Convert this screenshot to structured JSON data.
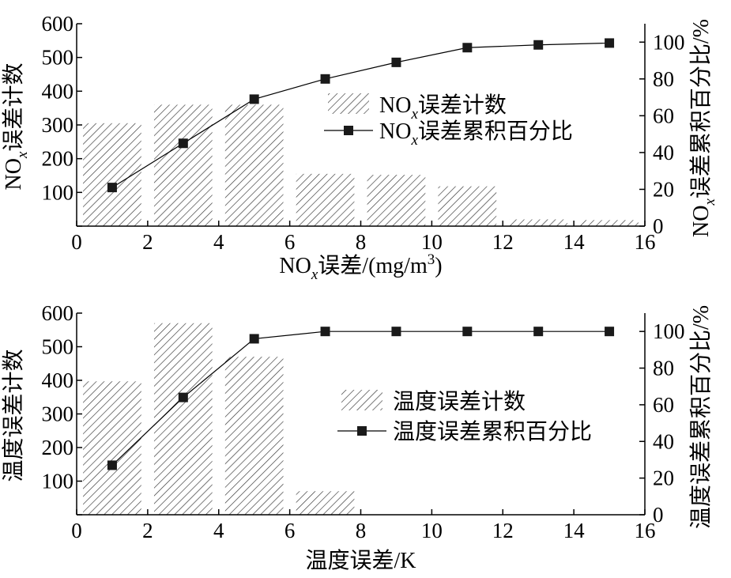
{
  "chart_data": [
    {
      "type": "bar",
      "xlabel_parts": [
        "NO",
        "x",
        "误差/(mg/m",
        "3",
        ")"
      ],
      "ylabel_left_parts": [
        "NO",
        "x",
        "误差计数"
      ],
      "ylabel_right_parts": [
        "NO",
        "x",
        "误差累积百分比/%"
      ],
      "x": [
        1,
        3,
        5,
        7,
        9,
        11,
        13,
        15
      ],
      "xlim": [
        0,
        16
      ],
      "xticks": [
        "0",
        "2",
        "4",
        "6",
        "8",
        "10",
        "12",
        "14",
        "16"
      ],
      "ylim_left": [
        0,
        600
      ],
      "yticks_left": [
        "0",
        "100",
        "200",
        "300",
        "400",
        "500",
        "600"
      ],
      "ylim_right": [
        0,
        110
      ],
      "yticks_right": [
        "0",
        "20",
        "40",
        "60",
        "80",
        "100"
      ],
      "series": [
        {
          "name_parts": [
            "NO",
            "x",
            "误差计数"
          ],
          "kind": "bar",
          "values": [
            305,
            360,
            360,
            155,
            152,
            118,
            20,
            18
          ]
        },
        {
          "name_parts": [
            "NO",
            "x",
            "误差累积百分比"
          ],
          "kind": "line",
          "axis": "right",
          "values": [
            21,
            45,
            69,
            80,
            89,
            97,
            98.5,
            99.5
          ]
        }
      ],
      "legend_position": "center-right"
    },
    {
      "type": "bar",
      "xlabel_parts": [
        "温度误差/K"
      ],
      "ylabel_left_parts": [
        "温度误差计数"
      ],
      "ylabel_right_parts": [
        "温度误差累积百分比/%"
      ],
      "x": [
        1,
        3,
        5,
        7,
        9,
        11,
        13,
        15
      ],
      "xlim": [
        0,
        16
      ],
      "xticks": [
        "0",
        "2",
        "4",
        "6",
        "8",
        "10",
        "12",
        "14",
        "16"
      ],
      "ylim_left": [
        0,
        600
      ],
      "yticks_left": [
        "0",
        "100",
        "200",
        "300",
        "400",
        "500",
        "600"
      ],
      "ylim_right": [
        0,
        110
      ],
      "yticks_right": [
        "0",
        "20",
        "40",
        "60",
        "80",
        "100"
      ],
      "series": [
        {
          "name_parts": [
            "温度误差计数"
          ],
          "kind": "bar",
          "values": [
            397,
            570,
            470,
            70,
            0,
            0,
            0,
            0
          ]
        },
        {
          "name_parts": [
            "温度误差累积百分比"
          ],
          "kind": "line",
          "axis": "right",
          "values": [
            27,
            64,
            96,
            100,
            100,
            100,
            100,
            100
          ]
        }
      ],
      "legend_position": "center-right"
    }
  ]
}
